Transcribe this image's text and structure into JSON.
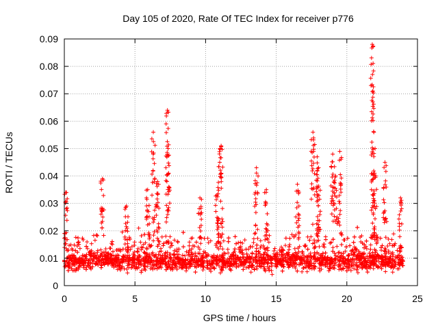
{
  "chart_data": {
    "type": "scatter",
    "title": "Day 105 of 2020, Rate Of TEC Index for receiver p776",
    "xlabel": "GPS time / hours",
    "ylabel": "ROTI / TECUs",
    "xlim": [
      0,
      25
    ],
    "ylim": [
      0,
      0.09
    ],
    "x_ticks": [
      0,
      5,
      10,
      15,
      20,
      25
    ],
    "y_ticks": [
      0,
      0.01,
      0.02,
      0.03,
      0.04,
      0.05,
      0.06,
      0.07,
      0.08,
      0.09
    ],
    "grid": true,
    "marker": "+",
    "color": "#ff0000",
    "baseline": {
      "x_range": [
        0,
        24
      ],
      "y_typical_range": [
        0.004,
        0.02
      ],
      "y_center": 0.009
    },
    "spikes": [
      {
        "x": 0.1,
        "peak": 0.034
      },
      {
        "x": 2.7,
        "peak": 0.039
      },
      {
        "x": 4.4,
        "peak": 0.029
      },
      {
        "x": 5.9,
        "peak": 0.035
      },
      {
        "x": 6.3,
        "peak": 0.056
      },
      {
        "x": 6.6,
        "peak": 0.038
      },
      {
        "x": 7.3,
        "peak": 0.064
      },
      {
        "x": 7.35,
        "peak": 0.05
      },
      {
        "x": 9.6,
        "peak": 0.032
      },
      {
        "x": 10.8,
        "peak": 0.033
      },
      {
        "x": 11.0,
        "peak": 0.045
      },
      {
        "x": 11.1,
        "peak": 0.051
      },
      {
        "x": 13.6,
        "peak": 0.043
      },
      {
        "x": 14.3,
        "peak": 0.035
      },
      {
        "x": 16.5,
        "peak": 0.037
      },
      {
        "x": 17.6,
        "peak": 0.056
      },
      {
        "x": 17.9,
        "peak": 0.047
      },
      {
        "x": 18.0,
        "peak": 0.043
      },
      {
        "x": 19.0,
        "peak": 0.048
      },
      {
        "x": 19.2,
        "peak": 0.04
      },
      {
        "x": 19.5,
        "peak": 0.049
      },
      {
        "x": 21.8,
        "peak": 0.088
      },
      {
        "x": 21.85,
        "peak": 0.071
      },
      {
        "x": 22.0,
        "peak": 0.05
      },
      {
        "x": 22.7,
        "peak": 0.045
      },
      {
        "x": 23.8,
        "peak": 0.032
      }
    ]
  }
}
